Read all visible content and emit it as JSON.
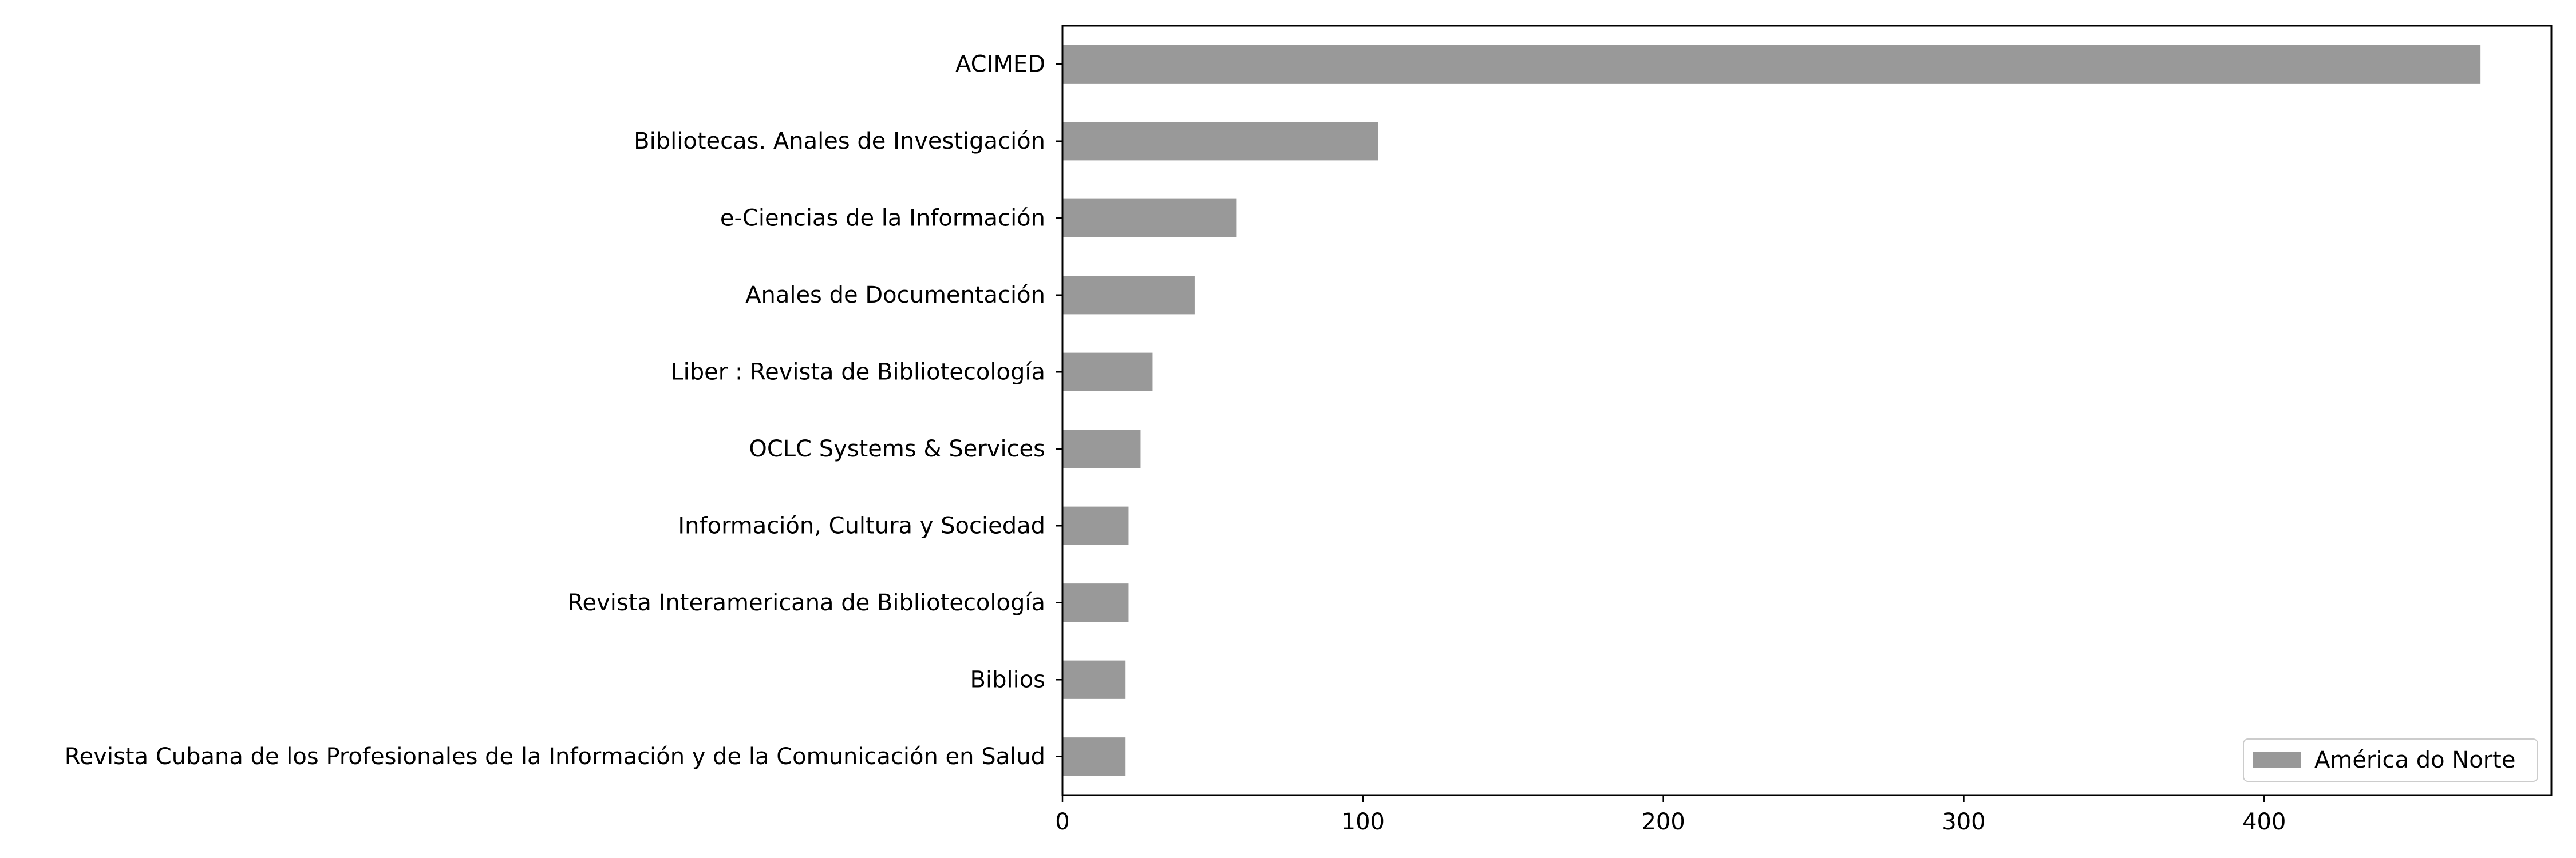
{
  "chart_data": {
    "type": "bar",
    "orientation": "horizontal",
    "categories": [
      "ACIMED",
      "Bibliotecas. Anales de Investigación",
      "e-Ciencias de la Información",
      "Anales de Documentación",
      "Liber : Revista de Bibliotecología",
      "OCLC Systems & Services",
      "Información, Cultura y Sociedad",
      "Revista Interamericana de Bibliotecología",
      "Biblios",
      "Revista Cubana de los Profesionales de la Información y de la Comunicación en Salud"
    ],
    "series": [
      {
        "name": "América do Norte",
        "color": "#999999",
        "values": [
          472,
          105,
          58,
          44,
          30,
          26,
          22,
          22,
          21,
          21
        ]
      }
    ],
    "xticks": [
      0,
      100,
      200,
      300,
      400
    ],
    "xlim": [
      0,
      495.6
    ],
    "grid": false,
    "legend_position": "lower-right"
  }
}
